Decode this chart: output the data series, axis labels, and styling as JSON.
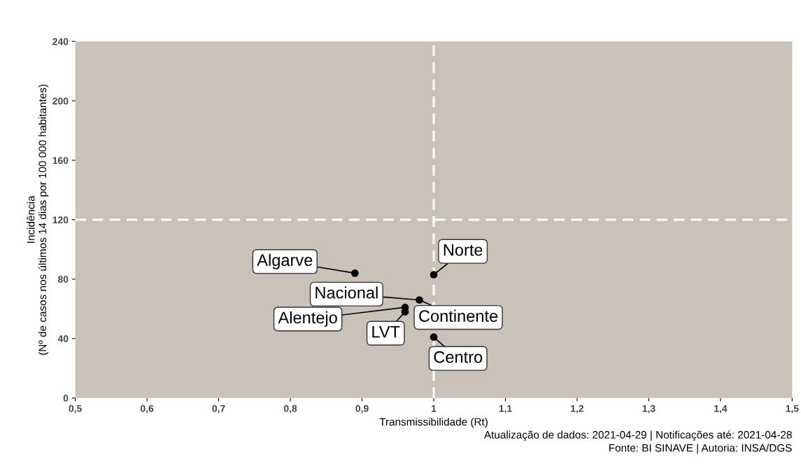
{
  "chart_data": {
    "type": "scatter",
    "xlabel": "Transmissibilidade (Rt)",
    "ylabel": "Incidência\n(Nº de casos nos últimos 14 dias por 100 000 habitantes)",
    "series": [
      {
        "color": "#000000",
        "x": [
          0.89,
          1.0,
          0.98,
          0.96,
          0.96,
          1.0
        ],
        "values": [
          84,
          83,
          66,
          61,
          58,
          41
        ]
      }
    ],
    "marker": "circle",
    "xlim": [
      0.5,
      1.5
    ],
    "xticks": [
      {
        "value": 0.5,
        "label": "0,5"
      },
      {
        "value": 0.6,
        "label": "0,6"
      },
      {
        "value": 0.7,
        "label": "0,7"
      },
      {
        "value": 0.8,
        "label": "0,8"
      },
      {
        "value": 0.9,
        "label": "0,9"
      },
      1,
      {
        "value": 1.1,
        "label": "1,1"
      },
      {
        "value": 1.2,
        "label": "1,2"
      },
      {
        "value": 1.3,
        "label": "1,3"
      },
      {
        "value": 1.4,
        "label": "1,4"
      },
      {
        "value": 1.5,
        "label": "1,5"
      }
    ],
    "ylim": [
      0,
      240
    ],
    "yticks": [
      0,
      40,
      80,
      120,
      160,
      200,
      240
    ],
    "grid": false,
    "ref_lines": [
      {
        "axis": "x",
        "value": 1,
        "color": "#ffffff",
        "line_style": "dashed"
      },
      {
        "axis": "y",
        "value": 120,
        "color": "#ffffff",
        "line_style": "dashed"
      }
    ],
    "annotations": [
      {
        "text": "Algarve",
        "x": 0.89,
        "y": 84
      },
      {
        "text": "Norte",
        "x": 1.0,
        "y": 83
      },
      {
        "text": "Nacional",
        "x": 0.98,
        "y": 66
      },
      {
        "text": "Continente",
        "x": 0.98,
        "y": 66
      },
      {
        "text": "Alentejo",
        "x": 0.96,
        "y": 61
      },
      {
        "text": "LVT",
        "x": 0.96,
        "y": 58
      },
      {
        "text": "Centro",
        "x": 1.0,
        "y": 41
      },
      "Atualização de dados: 2021-04-29 | Notificações até: 2021-04-28",
      "Fonte: BI SINAVE | Autoria: INSA/DGS"
    ]
  }
}
